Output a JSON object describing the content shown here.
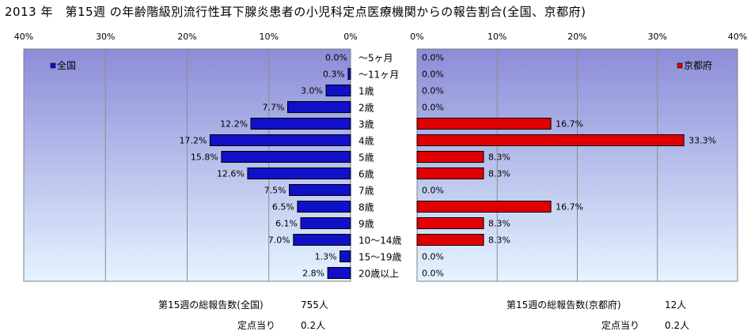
{
  "title": "2013 年　第15週 の年齢階級別流行性耳下腺炎患者の小児科定点医療機関からの報告割合(全国、京都府)",
  "colors": {
    "national": "#1010c8",
    "kyoto": "#e00000",
    "plot_top": "#8c8cd8",
    "plot_bottom": "#e4f4ff",
    "grid": "#8c8c8c"
  },
  "chart_data": [
    {
      "type": "bar",
      "orientation": "horizontal",
      "direction": "right-to-left",
      "legend": "全国",
      "legend_position": "top-left",
      "xlim": [
        0,
        40
      ],
      "tick_labels": [
        "40%",
        "30%",
        "20%",
        "10%",
        "0%"
      ],
      "grid": true,
      "categories": [
        "〜5ヶ月",
        "〜11ヶ月",
        "1歳",
        "2歳",
        "3歳",
        "4歳",
        "5歳",
        "6歳",
        "7歳",
        "8歳",
        "9歳",
        "10〜14歳",
        "15〜19歳",
        "20歳以上"
      ],
      "values": [
        0.0,
        0.3,
        3.0,
        7.7,
        12.2,
        17.2,
        15.8,
        12.6,
        7.5,
        6.5,
        6.1,
        7.0,
        1.3,
        2.8
      ],
      "data_labels": [
        "0.0%",
        "0.3%",
        "3.0%",
        "7.7%",
        "12.2%",
        "17.2%",
        "15.8%",
        "12.6%",
        "7.5%",
        "6.5%",
        "6.1%",
        "7.0%",
        "1.3%",
        "2.8%"
      ]
    },
    {
      "type": "bar",
      "orientation": "horizontal",
      "direction": "left-to-right",
      "legend": "京都府",
      "legend_position": "top-right",
      "xlim": [
        0,
        40
      ],
      "tick_labels": [
        "0%",
        "10%",
        "20%",
        "30%",
        "40%"
      ],
      "grid": true,
      "categories": [
        "〜5ヶ月",
        "〜11ヶ月",
        "1歳",
        "2歳",
        "3歳",
        "4歳",
        "5歳",
        "6歳",
        "7歳",
        "8歳",
        "9歳",
        "10〜14歳",
        "15〜19歳",
        "20歳以上"
      ],
      "values": [
        0.0,
        0.0,
        0.0,
        0.0,
        16.7,
        33.3,
        8.3,
        8.3,
        0.0,
        16.7,
        8.3,
        8.3,
        0.0,
        0.0
      ],
      "data_labels": [
        "0.0%",
        "0.0%",
        "0.0%",
        "0.0%",
        "16.7%",
        "33.3%",
        "8.3%",
        "8.3%",
        "0.0%",
        "16.7%",
        "8.3%",
        "8.3%",
        "0.0%",
        "0.0%"
      ]
    }
  ],
  "footer": {
    "national_total_label": "第15週の総報告数(全国)",
    "national_total_value": "755人",
    "national_per_label": "定点当り",
    "national_per_value": "0.2人",
    "kyoto_total_label": "第15週の総報告数(京都府)",
    "kyoto_total_value": "12人",
    "kyoto_per_label": "定点当り",
    "kyoto_per_value": "0.2人"
  }
}
